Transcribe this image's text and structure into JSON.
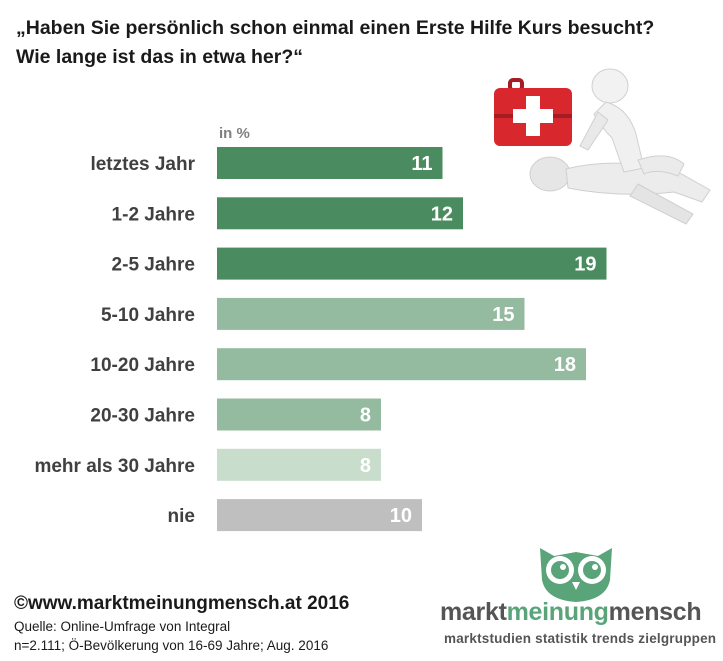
{
  "title": {
    "line1": "„Haben Sie persönlich schon einmal einen Erste Hilfe Kurs besucht?",
    "line2": "Wie lange ist das in etwa her?“"
  },
  "chart_data": {
    "type": "bar",
    "orientation": "horizontal",
    "unit_label": "in %",
    "categories": [
      "letztes Jahr",
      "1-2 Jahre",
      "2-5 Jahre",
      "5-10 Jahre",
      "10-20 Jahre",
      "20-30 Jahre",
      "mehr als 30 Jahre",
      "nie"
    ],
    "values": [
      11,
      12,
      19,
      15,
      18,
      8,
      8,
      10
    ],
    "colors": [
      "#4a8c5f",
      "#4a8c5f",
      "#4a8c5f",
      "#94bb9f",
      "#94bb9f",
      "#94bb9f",
      "#c8ddcc",
      "#bfbfbf"
    ],
    "xlim": [
      0,
      20
    ],
    "grid": false,
    "legend": "none",
    "data_labels": true
  },
  "footer": {
    "copyright": "©www.marktmeinungmensch.at 2016",
    "source_line1": "Quelle: Online-Umfrage von Integral",
    "source_line2": "n=2.111; Ö-Bevölkerung von 16-69 Jahre; Aug. 2016"
  },
  "logo": {
    "word1": "markt",
    "word2": "meinung",
    "word3": "mensch",
    "tagline": "marktstudien statistik trends zielgruppen",
    "brand_color": "#5aa47a",
    "text_color": "#555555"
  },
  "illustration": {
    "icon": "first-aid-kit-cpr-icon",
    "kit_color": "#d9272e"
  }
}
